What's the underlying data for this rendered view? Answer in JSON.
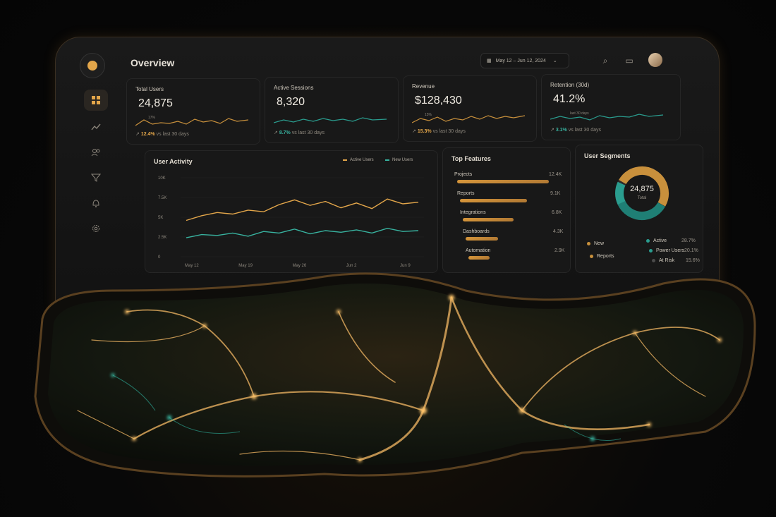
{
  "header": {
    "title": "Overview",
    "date_range": "May 12 – Jun 12, 2024"
  },
  "kpis": [
    {
      "label": "Total Users",
      "value": "24,875",
      "change": "12.4%",
      "compare": "vs last 30 days",
      "mini": "17%"
    },
    {
      "label": "Active Sessions",
      "value": "8,320",
      "change": "8.7%",
      "compare": "vs last 30 days"
    },
    {
      "label": "Revenue",
      "value": "$128,430",
      "change": "15.3%",
      "compare": "vs last 30 days",
      "mini": "15%"
    },
    {
      "label": "Retention (30d)",
      "value": "41.2%",
      "change": "3.1%",
      "compare": "vs last 30 days",
      "mini": "last 30 days"
    }
  ],
  "activity": {
    "title": "User Activity",
    "legend": [
      "Active Users",
      "New Users"
    ],
    "colors": {
      "active": "#e3a64a",
      "new": "#38b3a0"
    },
    "y_ticks": [
      "10K",
      "7.5K",
      "5K",
      "2.5K",
      "0"
    ],
    "x_ticks": [
      "May 12",
      "May 19",
      "May 26",
      "Jun 2",
      "Jun 9"
    ]
  },
  "chart_data": {
    "type": "line",
    "x": [
      "May 12",
      "May 14",
      "May 16",
      "May 18",
      "May 20",
      "May 22",
      "May 24",
      "May 26",
      "May 28",
      "May 30",
      "Jun 1",
      "Jun 3",
      "Jun 5",
      "Jun 7",
      "Jun 9",
      "Jun 11"
    ],
    "series": [
      {
        "name": "Active Users",
        "values": [
          4600,
          5200,
          5600,
          5400,
          5900,
          5700,
          6600,
          7200,
          6500,
          7000,
          6200,
          6800,
          6100,
          7300,
          6700,
          6900
        ]
      },
      {
        "name": "New Users",
        "values": [
          2400,
          2800,
          2700,
          3000,
          2600,
          3200,
          3000,
          3500,
          2900,
          3300,
          3100,
          3400,
          3000,
          3600,
          3200,
          3300
        ]
      }
    ],
    "ylim": [
      0,
      10000
    ],
    "title": "User Activity",
    "legend_position": "top-right"
  },
  "top_features": {
    "title": "Top Features",
    "items": [
      {
        "label": "Projects",
        "value": "12.4K",
        "frac": 1.0
      },
      {
        "label": "Reports",
        "value": "9.1K",
        "frac": 0.73
      },
      {
        "label": "Integrations",
        "value": "6.8K",
        "frac": 0.55
      },
      {
        "label": "Dashboards",
        "value": "4.3K",
        "frac": 0.35
      },
      {
        "label": "Automation",
        "value": "2.9K",
        "frac": 0.23
      }
    ]
  },
  "segments": {
    "title": "User Segments",
    "total": "24,875",
    "total_label": "Total",
    "items": [
      {
        "label": "New",
        "color": "#c8903c"
      },
      {
        "label": "Reports",
        "color": "#c8903c"
      },
      {
        "label": "Active",
        "pct": "28.7%",
        "color": "#2a9d8f"
      },
      {
        "label": "Power Users",
        "pct": "20.1%",
        "color": "#2a9d8f"
      },
      {
        "label": "At Risk",
        "pct": "15.6%",
        "color": "#4a4a4a"
      }
    ]
  },
  "sidebar": {
    "icons": [
      "dashboard-icon",
      "analytics-icon",
      "users-icon",
      "filter-icon",
      "bell-icon",
      "settings-icon"
    ]
  }
}
